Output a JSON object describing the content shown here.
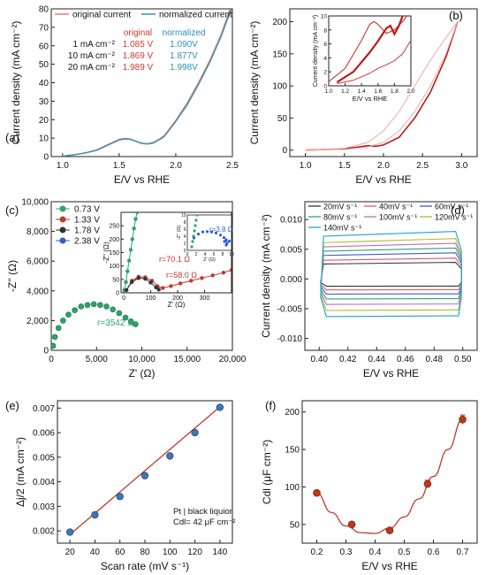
{
  "chart_data": [
    {
      "id": "a",
      "panel_label": "(a)",
      "type": "line",
      "xlabel": "E/V vs RHE",
      "ylabel": "Current density (mA cm⁻²)",
      "xlim": [
        0.9,
        2.5
      ],
      "ylim": [
        0,
        80
      ],
      "xticks": [
        1.0,
        1.5,
        2.0,
        2.5
      ],
      "yticks": [
        0,
        10,
        20,
        30,
        40,
        50,
        60,
        70,
        80
      ],
      "legend": {
        "placement": "top",
        "entries": [
          "original current",
          "normalized current"
        ]
      },
      "table": {
        "headers": [
          "original",
          "normalized"
        ],
        "rows": [
          {
            "label": "1 mA cm⁻²",
            "original": "1.085 V",
            "normalized": "1.090V"
          },
          {
            "label": "10 mA cm⁻²",
            "original": "1.869 V",
            "normalized": "1.877V"
          },
          {
            "label": "20 mA cm⁻²",
            "original": "1.989 V",
            "normalized": "1.998V"
          }
        ]
      },
      "series": [
        {
          "name": "original current",
          "color": "#d9826b",
          "x": [
            1.0,
            1.1,
            1.2,
            1.3,
            1.4,
            1.5,
            1.55,
            1.6,
            1.7,
            1.75,
            1.8,
            1.87,
            1.9,
            2.0,
            2.1,
            2.2,
            2.3,
            2.4,
            2.48
          ],
          "y": [
            0.3,
            1.0,
            2.0,
            3.6,
            6.5,
            9.3,
            9.8,
            9.5,
            7.2,
            7.0,
            7.6,
            10.0,
            11.5,
            19.5,
            29,
            40,
            52,
            66,
            80
          ]
        },
        {
          "name": "normalized current",
          "color": "#3b8fb3",
          "x": [
            1.0,
            1.1,
            1.2,
            1.3,
            1.4,
            1.5,
            1.55,
            1.6,
            1.7,
            1.75,
            1.8,
            1.88,
            1.9,
            2.0,
            2.1,
            2.2,
            2.3,
            2.4,
            2.49
          ],
          "y": [
            0.2,
            0.9,
            1.9,
            3.4,
            6.2,
            9.0,
            9.6,
            9.3,
            7.1,
            6.8,
            7.3,
            10.0,
            11.0,
            19.0,
            28,
            39,
            51,
            65,
            80
          ]
        }
      ]
    },
    {
      "id": "b",
      "panel_label": "(b)",
      "type": "line",
      "xlabel": "E/V vs RHE",
      "ylabel": "Current density (mA cm⁻²)",
      "xlim": [
        0.8,
        3.2
      ],
      "ylim": [
        -10,
        220
      ],
      "xticks": [
        1.0,
        1.5,
        2.0,
        2.5,
        3.0
      ],
      "yticks": [
        0,
        50,
        100,
        150,
        200
      ],
      "series": [
        {
          "name": "",
          "color": "#b81c1c",
          "x": [
            1.0,
            1.5,
            1.8,
            1.9,
            2.0,
            2.2,
            2.4,
            2.6,
            2.8,
            2.95
          ],
          "y": [
            0,
            2,
            7,
            6,
            8,
            20,
            50,
            90,
            145,
            200
          ]
        },
        {
          "name": "",
          "color": "#f2a8a8",
          "x": [
            1.0,
            1.5,
            1.8,
            2.0,
            2.2,
            2.4,
            2.6,
            2.8,
            2.95
          ],
          "y": [
            0,
            3,
            12,
            30,
            60,
            100,
            140,
            175,
            200
          ]
        },
        {
          "name": "",
          "color": "#f2a8a8",
          "x": [
            1.0,
            1.5,
            1.8,
            2.0,
            2.2,
            2.4,
            2.6,
            2.8,
            2.95
          ],
          "y": [
            0,
            1,
            5,
            12,
            30,
            60,
            100,
            150,
            200
          ]
        }
      ],
      "inset": {
        "xlabel": "E/V vs RHE",
        "ylabel": "Current density (mA cm⁻²)",
        "xlim": [
          1.0,
          2.0
        ],
        "ylim": [
          0,
          10
        ],
        "xticks": [
          1.0,
          1.2,
          1.4,
          1.6,
          1.8,
          2.0
        ],
        "yticks": [
          0,
          2,
          4,
          6,
          8,
          10
        ],
        "series": [
          {
            "name": "",
            "color": "#c0392b",
            "x": [
              1.0,
              1.2,
              1.4,
              1.5,
              1.55,
              1.6,
              1.7,
              1.8,
              1.9,
              1.95
            ],
            "y": [
              0.6,
              2.5,
              6.5,
              8.8,
              9.2,
              8.8,
              7.5,
              8.0,
              9.2,
              10
            ]
          },
          {
            "name": "",
            "color": "#b81c1c",
            "x": [
              1.1,
              1.3,
              1.5,
              1.6,
              1.7,
              1.75,
              1.8,
              1.85,
              1.9,
              1.95
            ],
            "y": [
              0.5,
              2.0,
              4.8,
              6.4,
              8.2,
              8.6,
              7.4,
              8.5,
              10,
              10.5
            ]
          },
          {
            "name": "",
            "color": "#d24b4b",
            "x": [
              1.1,
              1.3,
              1.5,
              1.6,
              1.7,
              1.8,
              1.9,
              2.0
            ],
            "y": [
              0.3,
              0.8,
              1.8,
              2.5,
              3.0,
              3.6,
              4.6,
              6.5
            ]
          }
        ]
      }
    },
    {
      "id": "c",
      "panel_label": "(c)",
      "type": "scatter",
      "xlabel": "Z' (Ω)",
      "ylabel": "-Z'' (Ω)",
      "xlim": [
        0,
        20000
      ],
      "ylim": [
        0,
        10000
      ],
      "xticks": [
        0,
        5000,
        10000,
        15000,
        20000
      ],
      "xtick_labels": [
        "0",
        "5,000",
        "10,000",
        "15,000",
        "20,000"
      ],
      "yticks": [
        0,
        2000,
        4000,
        6000,
        8000,
        10000
      ],
      "ytick_labels": [
        "0",
        "2,000",
        "4,000",
        "6,000",
        "8,000",
        "10,000"
      ],
      "legend": {
        "placement": "top-left",
        "entries": [
          "0.73 V",
          "1.33 V",
          "1.78 V",
          "2.38 V"
        ]
      },
      "annotations": [
        "r=3542 Ω"
      ],
      "series": [
        {
          "name": "0.73 V",
          "color": "#2ea36b",
          "x": [
            200,
            400,
            800,
            1300,
            1900,
            2600,
            3300,
            4000,
            4700,
            5400,
            6100,
            6800,
            7500,
            8200,
            8800,
            9300
          ],
          "y": [
            300,
            900,
            1500,
            2000,
            2400,
            2700,
            2950,
            3050,
            3100,
            3050,
            2950,
            2750,
            2500,
            2200,
            1950,
            1750
          ]
        },
        {
          "name": "1.33 V",
          "color": "#c0392b",
          "x": [],
          "y": []
        },
        {
          "name": "1.78 V",
          "color": "#333333",
          "x": [],
          "y": []
        },
        {
          "name": "2.38 V",
          "color": "#2e5bd1",
          "x": [],
          "y": []
        }
      ],
      "inset": {
        "xlabel": "Z' (Ω)",
        "ylabel": "-Z'' (Ω)",
        "xlim": [
          -10,
          400
        ],
        "ylim": [
          0,
          300
        ],
        "xticks": [
          0,
          100,
          200,
          300
        ],
        "yticks": [
          0,
          50,
          100,
          150,
          200,
          250
        ],
        "annotations": [
          "r=70.1 Ω",
          "r=58.0 Ω"
        ],
        "series": [
          {
            "name": "0.73 V",
            "color": "#2ea36b",
            "x": [
              2,
              8,
              14,
              20,
              26,
              32,
              38,
              44,
              50
            ],
            "y": [
              10,
              40,
              80,
              120,
              160,
              200,
              240,
              275,
              300
            ]
          },
          {
            "name": "1.33 V",
            "color": "#c0392b",
            "x": [
              10,
              30,
              55,
              80,
              105,
              125,
              145,
              175,
              210,
              250,
              290,
              330,
              370,
              400
            ],
            "y": [
              10,
              45,
              60,
              58,
              45,
              25,
              18,
              25,
              35,
              45,
              55,
              65,
              75,
              85
            ]
          },
          {
            "name": "1.78 V",
            "color": "#333333",
            "x": [
              10,
              30,
              55,
              80,
              100,
              120,
              130
            ],
            "y": [
              10,
              40,
              55,
              52,
              38,
              20,
              12
            ]
          }
        ]
      },
      "inset2": {
        "xlabel": "Z' (Ω)",
        "ylabel": "-Z'' (Ω)",
        "xlim": [
          0,
          10
        ],
        "ylim": [
          0,
          10
        ],
        "xticks": [
          0,
          2,
          4,
          6,
          8,
          10
        ],
        "yticks": [
          0,
          2,
          4,
          6,
          8,
          10
        ],
        "annotations": [
          "r=3.8 Ω"
        ],
        "series": [
          {
            "name": "0.73 V",
            "color": "#2ea36b",
            "x": [
              1.0,
              1.2,
              1.4,
              1.6,
              1.8,
              2.0,
              2.2
            ],
            "y": [
              1,
              2.5,
              4,
              5.5,
              7,
              8.5,
              10
            ]
          },
          {
            "name": "2.38 V",
            "color": "#2e5bd1",
            "x": [
              1.5,
              2.5,
              3.5,
              4.5,
              5.5,
              6.5,
              7.5,
              8.3,
              8.8,
              9.0,
              8.8,
              8.4,
              8.8,
              9.5
            ],
            "y": [
              3.5,
              4.6,
              5.2,
              5.3,
              5.2,
              4.9,
              4.3,
              3.6,
              2.8,
              2.0,
              1.5,
              2.5,
              3.0,
              2.6
            ]
          }
        ]
      }
    },
    {
      "id": "d",
      "panel_label": "(d)",
      "type": "line",
      "xlabel": "E/V vs RHE",
      "ylabel": "Current density (mA cm⁻²)",
      "xlim": [
        0.39,
        0.51
      ],
      "ylim": [
        -0.012,
        0.013
      ],
      "xticks": [
        0.4,
        0.42,
        0.44,
        0.46,
        0.48,
        0.5
      ],
      "yticks": [
        -0.01,
        -0.005,
        0.0,
        0.005,
        0.01
      ],
      "legend": {
        "placement": "top",
        "entries": [
          "20mV s⁻¹",
          "40mV s⁻¹",
          "60mV s⁻¹",
          "80mV s⁻¹",
          "100mV s⁻¹",
          "120mV s⁻¹",
          "140mV s⁻¹"
        ]
      },
      "series": [
        {
          "name": "20mV s⁻¹",
          "color": "#333333",
          "upper": 0.0028,
          "lower": -0.0012
        },
        {
          "name": "40mV s⁻¹",
          "color": "#e05a5a",
          "upper": 0.0035,
          "lower": -0.0018
        },
        {
          "name": "60mV s⁻¹",
          "color": "#3b5bdb",
          "upper": 0.0044,
          "lower": -0.0025
        },
        {
          "name": "80mV s⁻¹",
          "color": "#2ea36b",
          "upper": 0.0052,
          "lower": -0.0033
        },
        {
          "name": "100mV s⁻¹",
          "color": "#c06bc0",
          "upper": 0.006,
          "lower": -0.0042
        },
        {
          "name": "120mV s⁻¹",
          "color": "#b5b82a",
          "upper": 0.0068,
          "lower": -0.0052
        },
        {
          "name": "140mV s⁻¹",
          "color": "#1aa3cf",
          "upper": 0.008,
          "lower": -0.0062
        }
      ]
    },
    {
      "id": "e",
      "panel_label": "(e)",
      "type": "scatter",
      "xlabel": "Scan rate (mV s⁻¹)",
      "ylabel": "Δj/2 (mA cm⁻²)",
      "xlim": [
        10,
        150
      ],
      "ylim": [
        0.0015,
        0.0073
      ],
      "xticks": [
        20,
        40,
        60,
        80,
        100,
        120,
        140
      ],
      "yticks": [
        0.002,
        0.003,
        0.004,
        0.005,
        0.006,
        0.007
      ],
      "annotations": [
        "Pt | black liquior",
        "Cdl= 42 μF cm⁻²"
      ],
      "series": [
        {
          "name": "",
          "color": "#3a79b8",
          "x": [
            20,
            40,
            60,
            80,
            100,
            120,
            140
          ],
          "y": [
            0.00195,
            0.00265,
            0.0034,
            0.00425,
            0.00505,
            0.006,
            0.00703
          ]
        }
      ],
      "fit": {
        "color": "#c0392b",
        "x": [
          20,
          140
        ],
        "y": [
          0.00185,
          0.00705
        ]
      }
    },
    {
      "id": "f",
      "panel_label": "(f)",
      "type": "scatter",
      "xlabel": "E/V vs RHE",
      "ylabel": "Cdl (μF cm⁻²)",
      "xlim": [
        0.15,
        0.75
      ],
      "ylim": [
        25,
        215
      ],
      "xticks": [
        0.2,
        0.3,
        0.4,
        0.5,
        0.6,
        0.7
      ],
      "yticks": [
        50,
        100,
        150,
        200
      ],
      "series": [
        {
          "name": "",
          "color": "#b83a1c",
          "x": [
            0.2,
            0.32,
            0.45,
            0.58,
            0.7
          ],
          "y": [
            92,
            50,
            42,
            104,
            190
          ],
          "err": [
            3,
            2,
            2,
            5,
            6
          ]
        }
      ],
      "fit": {
        "color": "#c0392b",
        "x": [
          0.2,
          0.25,
          0.3,
          0.35,
          0.4,
          0.45,
          0.5,
          0.55,
          0.6,
          0.65,
          0.7
        ],
        "y": [
          92,
          66,
          48,
          39,
          38,
          45,
          60,
          84,
          114,
          150,
          190
        ]
      }
    }
  ]
}
